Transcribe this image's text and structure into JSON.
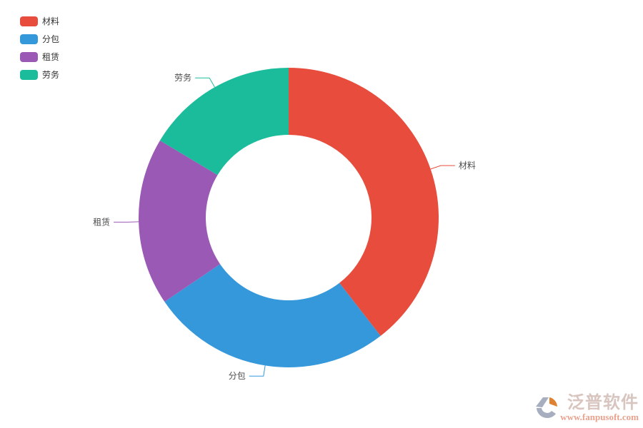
{
  "page": {
    "background": "#ffffff"
  },
  "chart_data": {
    "type": "pie",
    "variant": "donut",
    "title": "",
    "legend_position": "top-left",
    "legend": [
      "材料",
      "分包",
      "租赁",
      "劳务"
    ],
    "series": [
      {
        "name": "材料",
        "value": 39.5,
        "color": "#e74c3c"
      },
      {
        "name": "分包",
        "value": 26.0,
        "color": "#3498db"
      },
      {
        "name": "租赁",
        "value": 18.1,
        "color": "#9b59b6"
      },
      {
        "name": "劳务",
        "value": 16.4,
        "color": "#1abc9c"
      }
    ],
    "value_unit": "% of circle (estimated from arc angles)",
    "start_angle": "12 o'clock, clockwise",
    "labels_shown": true,
    "label_color": "#4d4d4d",
    "grid": "off"
  },
  "watermark": {
    "brand": "泛普软件",
    "url": "www.fanpusoft.com",
    "brand_color": "#d9c5bf",
    "url_color": "#e9a28e",
    "logo_gray": "#a6aebf",
    "logo_orange": "#e0812f"
  }
}
